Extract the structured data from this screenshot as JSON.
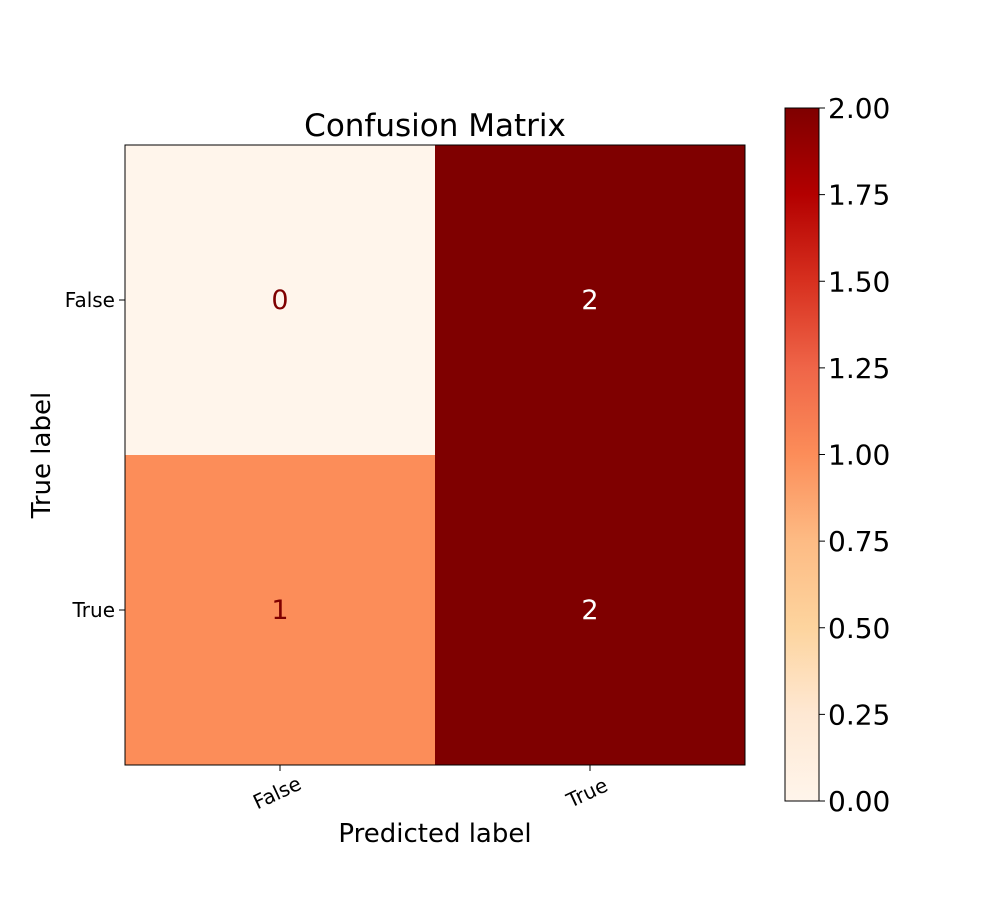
{
  "chart_data": {
    "type": "heatmap",
    "title": "Confusion Matrix",
    "xlabel": "Predicted label",
    "ylabel": "True label",
    "x_categories": [
      "False",
      "True"
    ],
    "y_categories": [
      "False",
      "True"
    ],
    "values": [
      [
        0,
        2
      ],
      [
        1,
        2
      ]
    ],
    "value_labels": [
      [
        "0",
        "2"
      ],
      [
        "1",
        "2"
      ]
    ],
    "colorbar": {
      "colormap": "Oranges-like (light cream to dark red)",
      "min": 0,
      "max": 2,
      "ticks": [
        0,
        0.25,
        0.5,
        0.75,
        1,
        1.25,
        1.5,
        1.75,
        2
      ],
      "tick_labels": [
        "0.00",
        "0.25",
        "0.50",
        "0.75",
        "1.00",
        "1.25",
        "1.50",
        "1.75",
        "2.00"
      ]
    },
    "colors": {
      "low": "#fff5eb",
      "mid": "#fc8d59",
      "high": "#7f0000",
      "text_on_light": "#7f0000",
      "text_on_dark": "#ffffff"
    }
  }
}
